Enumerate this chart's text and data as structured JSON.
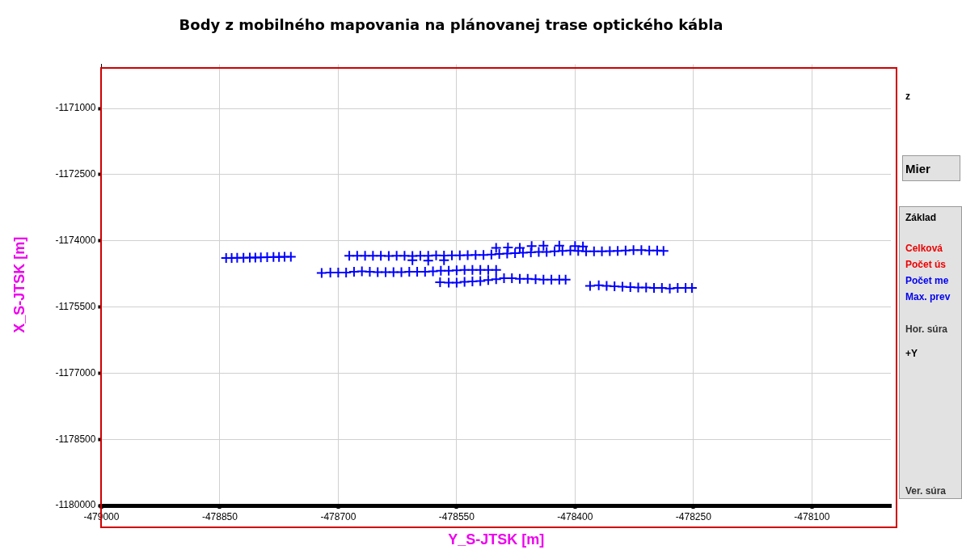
{
  "chart_data": {
    "type": "scatter",
    "title": "Body z mobilného mapovania na plánovanej trase optického kábla",
    "xlabel": "Y_S-JTSK [m]",
    "ylabel": "X_S-JTSK [m]",
    "xlim": [
      -479000,
      -478000
    ],
    "xticks": [
      -479000,
      -478850,
      -478700,
      -478550,
      -478400,
      -478250,
      -478100
    ],
    "ylim": [
      -1180000,
      -1170000
    ],
    "yticks": [
      -1171000,
      -1172500,
      -1174000,
      -1175500,
      -1177000,
      -1178500,
      -1180000
    ],
    "grid": true,
    "legend": false,
    "marker": "cross",
    "annotations": [
      "z",
      "Mier",
      "Základ",
      "Celková",
      "Počet ús",
      "Počet me",
      "Max. prev",
      "Hor. súra",
      "+Y",
      "Ver. súra"
    ],
    "series": [
      {
        "color": "#0000ff",
        "x": [
          -478842,
          -478835,
          -478828,
          -478820,
          -478812,
          -478805,
          -478798,
          -478790,
          -478782,
          -478775,
          -478768,
          -478760,
          -478686,
          -478676,
          -478666,
          -478656,
          -478646,
          -478636,
          -478626,
          -478616,
          -478606,
          -478596,
          -478586,
          -478576,
          -478566,
          -478556,
          -478546,
          -478536,
          -478526,
          -478516,
          -478506,
          -478496,
          -478486,
          -478476,
          -478466,
          -478456,
          -478446,
          -478436,
          -478426,
          -478416,
          -478406,
          -478396,
          -478386,
          -478376,
          -478366,
          -478356,
          -478346,
          -478336,
          -478326,
          -478316,
          -478306,
          -478296,
          -478288,
          -478606,
          -478586,
          -478566,
          -478500,
          -478485,
          -478470,
          -478455,
          -478440,
          -478420,
          -478400,
          -478390,
          -478721,
          -478710,
          -478700,
          -478690,
          -478680,
          -478670,
          -478660,
          -478650,
          -478640,
          -478630,
          -478620,
          -478610,
          -478600,
          -478590,
          -478580,
          -478570,
          -478560,
          -478550,
          -478540,
          -478530,
          -478520,
          -478510,
          -478500,
          -478571,
          -478560,
          -478550,
          -478540,
          -478530,
          -478520,
          -478510,
          -478500,
          -478490,
          -478480,
          -478470,
          -478460,
          -478450,
          -478440,
          -478430,
          -478420,
          -478412,
          -478381,
          -478370,
          -478360,
          -478350,
          -478340,
          -478330,
          -478320,
          -478310,
          -478300,
          -478290,
          -478280,
          -478270,
          -478260,
          -478252
        ],
        "values": [
          -1174390,
          -1174390,
          -1174385,
          -1174385,
          -1174380,
          -1174380,
          -1174375,
          -1174370,
          -1174365,
          -1174365,
          -1174360,
          -1174360,
          -1174340,
          -1174340,
          -1174340,
          -1174340,
          -1174340,
          -1174345,
          -1174340,
          -1174340,
          -1174345,
          -1174340,
          -1174340,
          -1174330,
          -1174335,
          -1174330,
          -1174330,
          -1174325,
          -1174320,
          -1174320,
          -1174310,
          -1174300,
          -1174290,
          -1174280,
          -1174270,
          -1174260,
          -1174250,
          -1174250,
          -1174240,
          -1174230,
          -1174220,
          -1174230,
          -1174240,
          -1174240,
          -1174240,
          -1174235,
          -1174230,
          -1174220,
          -1174210,
          -1174210,
          -1174220,
          -1174220,
          -1174230,
          -1174440,
          -1174450,
          -1174440,
          -1174160,
          -1174150,
          -1174160,
          -1174120,
          -1174110,
          -1174110,
          -1174120,
          -1174130,
          -1174730,
          -1174720,
          -1174720,
          -1174720,
          -1174700,
          -1174690,
          -1174700,
          -1174710,
          -1174710,
          -1174710,
          -1174710,
          -1174700,
          -1174700,
          -1174700,
          -1174690,
          -1174680,
          -1174680,
          -1174670,
          -1174660,
          -1174660,
          -1174660,
          -1174660,
          -1174660,
          -1174940,
          -1174950,
          -1174950,
          -1174930,
          -1174920,
          -1174910,
          -1174890,
          -1174870,
          -1174850,
          -1174850,
          -1174860,
          -1174860,
          -1174870,
          -1174880,
          -1174880,
          -1174880,
          -1174880,
          -1175020,
          -1175010,
          -1175020,
          -1175030,
          -1175040,
          -1175050,
          -1175060,
          -1175060,
          -1175070,
          -1175070,
          -1175080,
          -1175070,
          -1175070,
          -1175070
        ]
      }
    ]
  }
}
